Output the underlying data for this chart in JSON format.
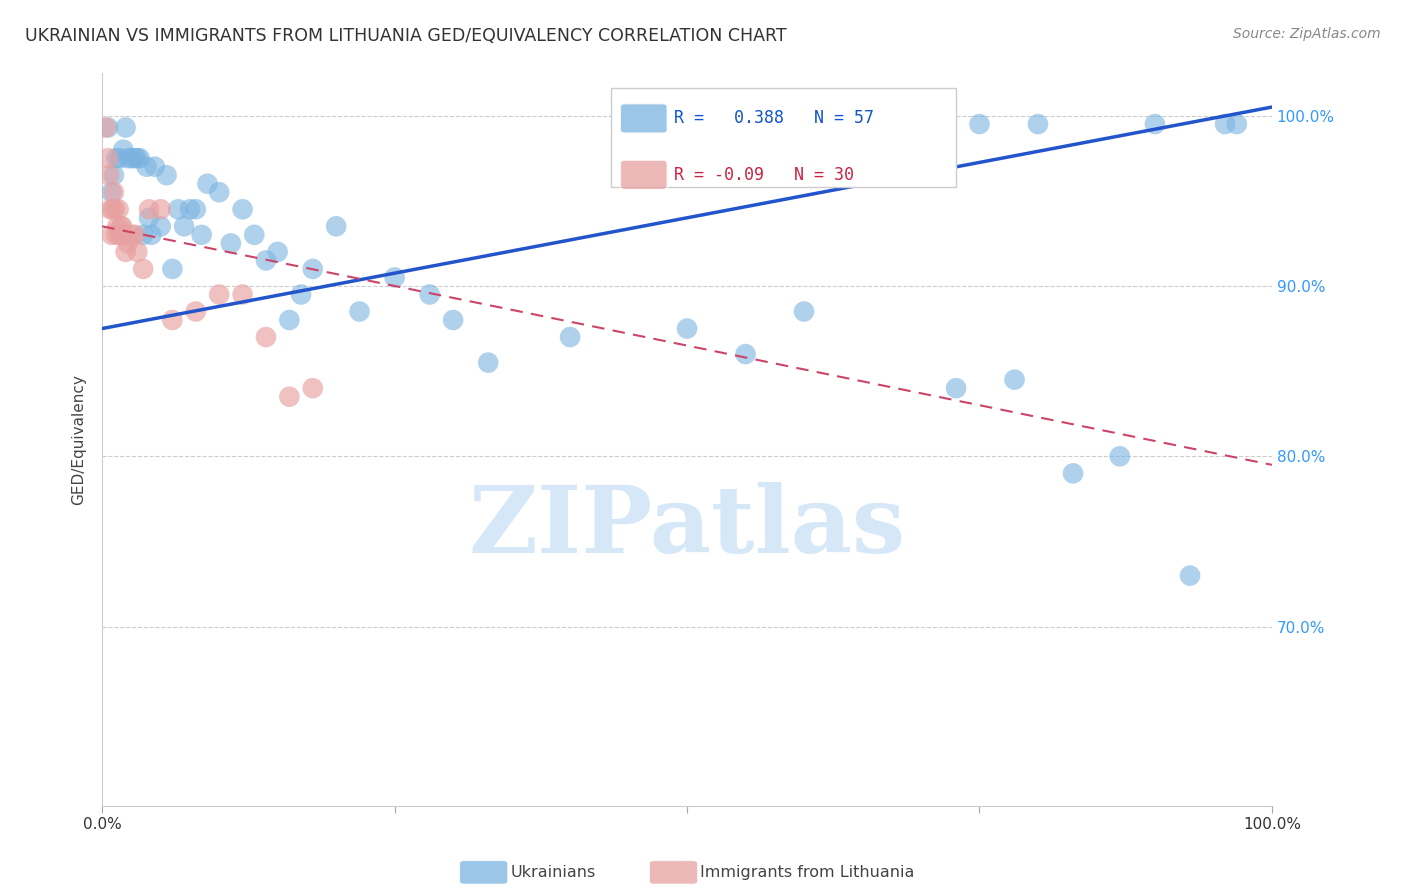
{
  "title": "UKRAINIAN VS IMMIGRANTS FROM LITHUANIA GED/EQUIVALENCY CORRELATION CHART",
  "source": "Source: ZipAtlas.com",
  "ylabel": "GED/Equivalency",
  "ytick_labels": [
    "100.0%",
    "90.0%",
    "80.0%",
    "70.0%"
  ],
  "ytick_values": [
    1.0,
    0.9,
    0.8,
    0.7
  ],
  "xlim": [
    0.0,
    1.0
  ],
  "ylim": [
    0.595,
    1.025
  ],
  "R_blue": 0.388,
  "N_blue": 57,
  "R_pink": -0.09,
  "N_pink": 30,
  "blue_color": "#7ab3e0",
  "pink_color": "#e8a0a0",
  "line_blue": "#2255cc",
  "line_pink": "#cc4466",
  "watermark": "ZIPatlas",
  "watermark_color": "#d6e8f7",
  "legend_label_blue": "Ukrainians",
  "legend_label_pink": "Immigrants from Lithuania",
  "blue_scatter_x": [
    0.005,
    0.008,
    0.01,
    0.012,
    0.015,
    0.018,
    0.02,
    0.022,
    0.025,
    0.028,
    0.03,
    0.032,
    0.035,
    0.038,
    0.04,
    0.042,
    0.045,
    0.05,
    0.055,
    0.06,
    0.065,
    0.07,
    0.075,
    0.08,
    0.085,
    0.09,
    0.1,
    0.11,
    0.12,
    0.13,
    0.14,
    0.15,
    0.16,
    0.17,
    0.18,
    0.2,
    0.22,
    0.25,
    0.28,
    0.3,
    0.33,
    0.4,
    0.5,
    0.55,
    0.6,
    0.65,
    0.7,
    0.73,
    0.75,
    0.78,
    0.8,
    0.83,
    0.87,
    0.9,
    0.93,
    0.96,
    0.97
  ],
  "blue_scatter_y": [
    0.993,
    0.955,
    0.965,
    0.975,
    0.975,
    0.98,
    0.993,
    0.975,
    0.975,
    0.975,
    0.975,
    0.975,
    0.93,
    0.97,
    0.94,
    0.93,
    0.97,
    0.935,
    0.965,
    0.91,
    0.945,
    0.935,
    0.945,
    0.945,
    0.93,
    0.96,
    0.955,
    0.925,
    0.945,
    0.93,
    0.915,
    0.92,
    0.88,
    0.895,
    0.91,
    0.935,
    0.885,
    0.905,
    0.895,
    0.88,
    0.855,
    0.87,
    0.875,
    0.86,
    0.885,
    0.995,
    0.995,
    0.84,
    0.995,
    0.845,
    0.995,
    0.79,
    0.8,
    0.995,
    0.73,
    0.995,
    0.995
  ],
  "pink_scatter_x": [
    0.003,
    0.005,
    0.006,
    0.007,
    0.008,
    0.009,
    0.01,
    0.011,
    0.012,
    0.013,
    0.014,
    0.015,
    0.016,
    0.017,
    0.018,
    0.02,
    0.022,
    0.025,
    0.028,
    0.03,
    0.035,
    0.04,
    0.05,
    0.06,
    0.08,
    0.1,
    0.12,
    0.14,
    0.16,
    0.18
  ],
  "pink_scatter_y": [
    0.993,
    0.975,
    0.965,
    0.945,
    0.93,
    0.945,
    0.955,
    0.945,
    0.93,
    0.935,
    0.945,
    0.93,
    0.935,
    0.935,
    0.93,
    0.92,
    0.925,
    0.93,
    0.93,
    0.92,
    0.91,
    0.945,
    0.945,
    0.88,
    0.885,
    0.895,
    0.895,
    0.87,
    0.835,
    0.84
  ],
  "blue_line_x0": 0.0,
  "blue_line_y0": 0.875,
  "blue_line_x1": 1.0,
  "blue_line_y1": 1.005,
  "pink_line_x0": 0.0,
  "pink_line_y0": 0.935,
  "pink_line_x1": 1.0,
  "pink_line_y1": 0.795
}
